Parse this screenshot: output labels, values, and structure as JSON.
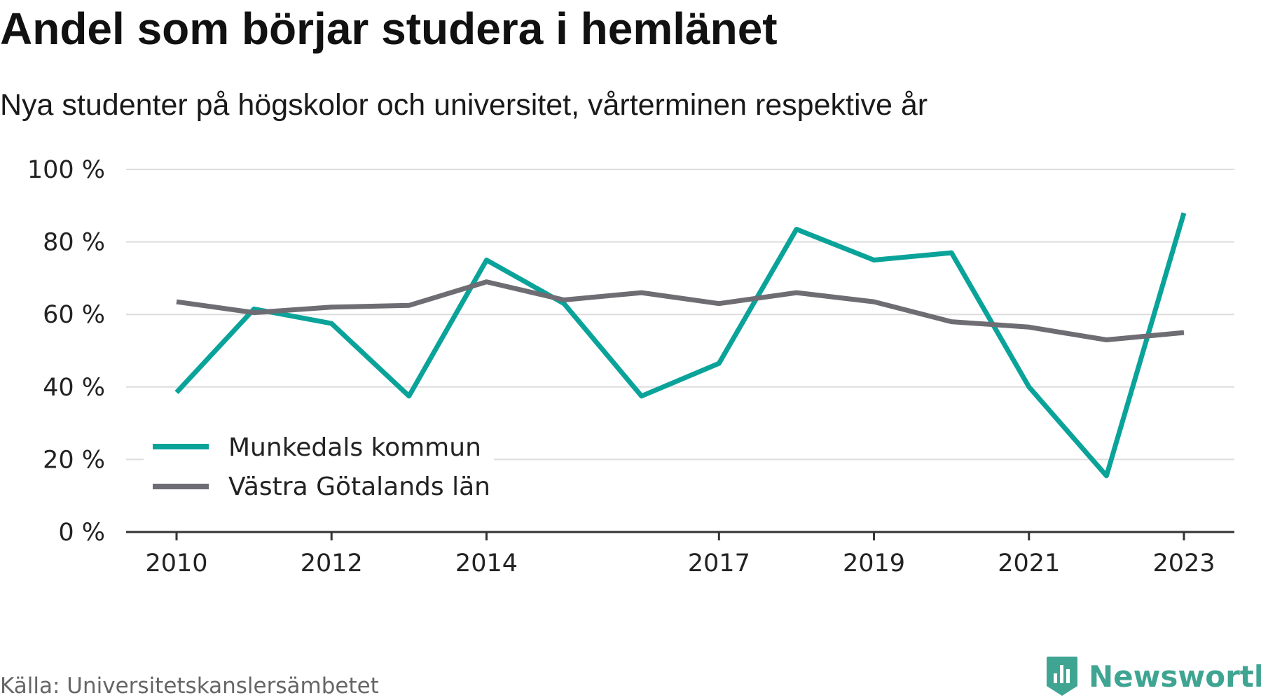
{
  "title": "Andel som börjar studera i hemlänet",
  "subtitle": "Nya studenter på högskolor och universitet, vårterminen respektive år",
  "source": "Källa: Universitetskanslersämbetet",
  "brand": {
    "name": "Newsworthy",
    "icon": "newsworthy-logo-icon",
    "color": "#3fa592"
  },
  "chart_data": {
    "type": "line",
    "x": [
      2010,
      2011,
      2012,
      2013,
      2014,
      2015,
      2016,
      2017,
      2018,
      2019,
      2020,
      2021,
      2022,
      2023
    ],
    "x_tick_values": [
      2010,
      2012,
      2014,
      2017,
      2019,
      2021,
      2023
    ],
    "x_tick_labels": [
      "2010",
      "2012",
      "2014",
      "2017",
      "2019",
      "2021",
      "2023"
    ],
    "y_tick_values": [
      0,
      20,
      40,
      60,
      80,
      100
    ],
    "y_tick_labels": [
      "0 %",
      "20 %",
      "40 %",
      "60 %",
      "80 %",
      "100 %"
    ],
    "ylim": [
      0,
      100
    ],
    "xlabel": "",
    "ylabel": "",
    "grid": true,
    "legend_position": "bottom-left",
    "series": [
      {
        "name": "Munkedals kommun",
        "color": "#0aa39a",
        "values": [
          38.5,
          61.5,
          57.5,
          37.5,
          75.0,
          63.0,
          37.5,
          46.5,
          83.5,
          75.0,
          77.0,
          40.0,
          15.5,
          88.0
        ]
      },
      {
        "name": "Västra Götalands län",
        "color": "#6e6d73",
        "values": [
          63.5,
          60.5,
          62.0,
          62.5,
          69.0,
          64.0,
          66.0,
          63.0,
          66.0,
          63.5,
          58.0,
          56.5,
          53.0,
          55.0
        ]
      }
    ]
  }
}
